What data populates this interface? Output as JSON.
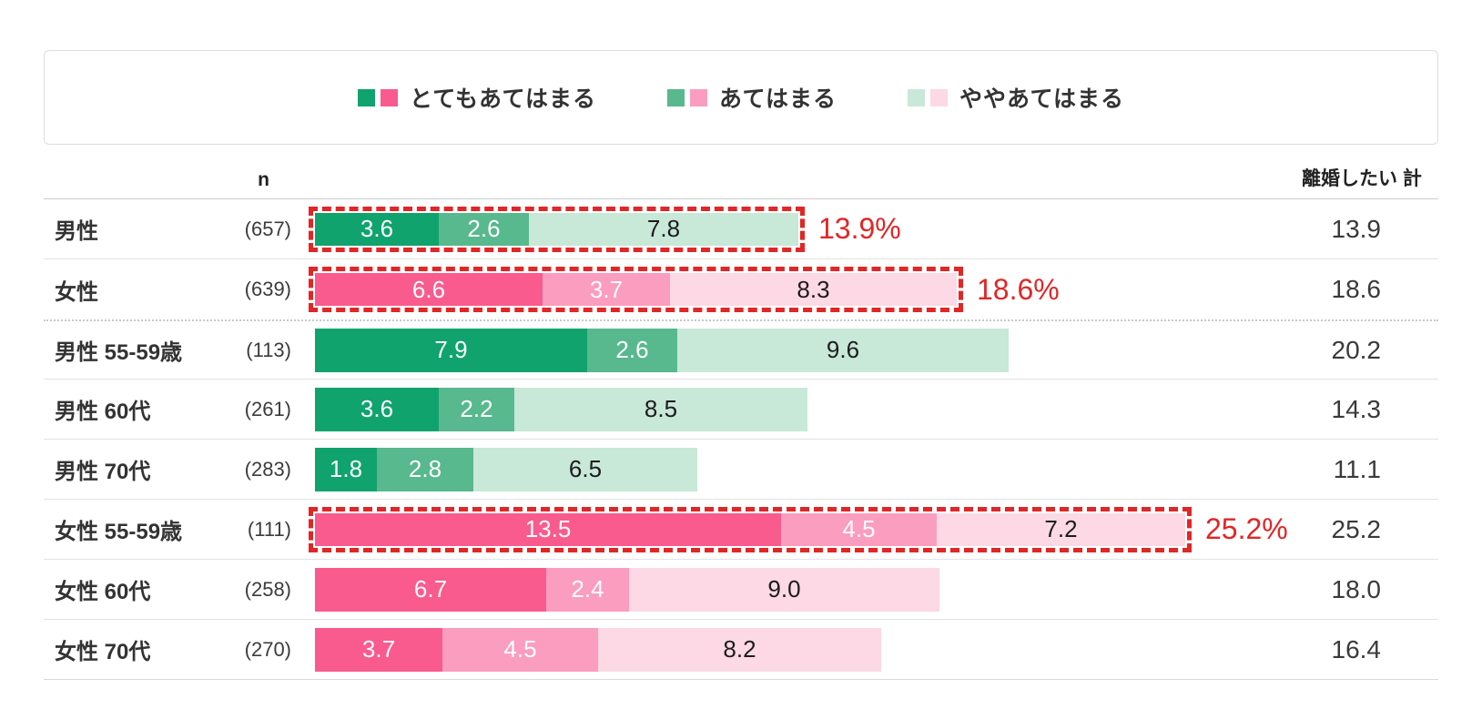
{
  "legend": {
    "items": [
      {
        "label": "とてもあてはまる",
        "green": "#10a36e",
        "pink": "#f95b8e"
      },
      {
        "label": "あてはまる",
        "green": "#58b88e",
        "pink": "#fb9dbe"
      },
      {
        "label": "ややあてはまる",
        "green": "#c8e8d8",
        "pink": "#fcd9e4"
      }
    ]
  },
  "colors": {
    "male": [
      "#10a36e",
      "#58b88e",
      "#c8e8d8"
    ],
    "female": [
      "#f95b8e",
      "#fb9dbe",
      "#fcd9e4"
    ],
    "highlight_red": "#e12626"
  },
  "table": {
    "n_header": "n",
    "total_header": "離婚したい 計",
    "rows": [
      {
        "label": "男性",
        "n": "(657)",
        "group": "male",
        "values": [
          "3.6",
          "2.6",
          "7.8"
        ],
        "total": "13.9",
        "highlight": "13.9%"
      },
      {
        "label": "女性",
        "n": "(639)",
        "group": "female",
        "values": [
          "6.6",
          "3.7",
          "8.3"
        ],
        "total": "18.6",
        "highlight": "18.6%",
        "separator_after": "dotted"
      },
      {
        "label": "男性 55-59歳",
        "n": "(113)",
        "group": "male",
        "values": [
          "7.9",
          "2.6",
          "9.6"
        ],
        "total": "20.2"
      },
      {
        "label": "男性 60代",
        "n": "(261)",
        "group": "male",
        "values": [
          "3.6",
          "2.2",
          "8.5"
        ],
        "total": "14.3"
      },
      {
        "label": "男性 70代",
        "n": "(283)",
        "group": "male",
        "values": [
          "1.8",
          "2.8",
          "6.5"
        ],
        "total": "11.1"
      },
      {
        "label": "女性 55-59歳",
        "n": "(111)",
        "group": "female",
        "values": [
          "13.5",
          "4.5",
          "7.2"
        ],
        "total": "25.2",
        "highlight": "25.2%"
      },
      {
        "label": "女性 60代",
        "n": "(258)",
        "group": "female",
        "values": [
          "6.7",
          "2.4",
          "9.0"
        ],
        "total": "18.0"
      },
      {
        "label": "女性 70代",
        "n": "(270)",
        "group": "female",
        "values": [
          "3.7",
          "4.5",
          "8.2"
        ],
        "total": "16.4"
      }
    ]
  },
  "chart_data": {
    "type": "bar",
    "orientation": "horizontal",
    "stacked": true,
    "unit": "%",
    "legend_position": "top",
    "title": "",
    "categories": [
      "男性",
      "女性",
      "男性 55-59歳",
      "男性 60代",
      "男性 70代",
      "女性 55-59歳",
      "女性 60代",
      "女性 70代"
    ],
    "n_values": [
      657,
      639,
      113,
      261,
      283,
      111,
      258,
      270
    ],
    "series": [
      {
        "name": "とてもあてはまる",
        "values": [
          3.6,
          6.6,
          7.9,
          3.6,
          1.8,
          13.5,
          6.7,
          3.7
        ]
      },
      {
        "name": "あてはまる",
        "values": [
          2.6,
          3.7,
          2.6,
          2.2,
          2.8,
          4.5,
          2.4,
          4.5
        ]
      },
      {
        "name": "ややあてはまる",
        "values": [
          7.8,
          8.3,
          9.6,
          8.5,
          6.5,
          7.2,
          9.0,
          8.2
        ]
      }
    ],
    "totals_label": "離婚したい 計",
    "totals": [
      13.9,
      18.6,
      20.2,
      14.3,
      11.1,
      25.2,
      18.0,
      16.4
    ],
    "highlighted_categories": [
      "男性",
      "女性",
      "女性 55-59歳"
    ],
    "highlight_callouts": [
      "13.9%",
      "18.6%",
      "25.2%"
    ],
    "color_note": "male rows use green palette, female rows use pink palette",
    "xlim": [
      0,
      26
    ]
  }
}
